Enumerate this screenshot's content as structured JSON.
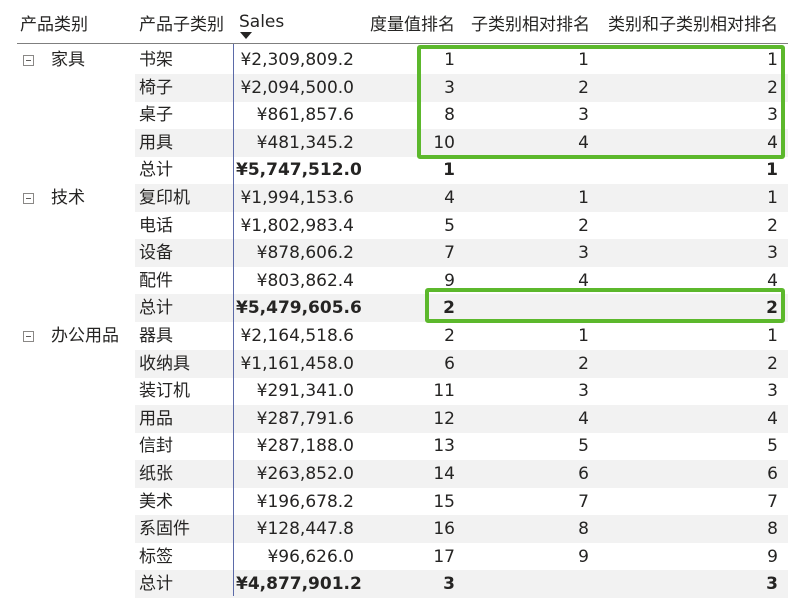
{
  "headers": {
    "category": "产品类别",
    "subcategory": "产品子类别",
    "sales": "Sales",
    "measure_rank": "度量值排名",
    "sub_rank": "子类别相对排名",
    "cat_sub_rank": "类别和子类别相对排名"
  },
  "groups": [
    {
      "name": "家具",
      "rows": [
        {
          "sub": "书架",
          "sales": "¥2,309,809.2",
          "m": "1",
          "s": "1",
          "c": "1"
        },
        {
          "sub": "椅子",
          "sales": "¥2,094,500.0",
          "m": "3",
          "s": "2",
          "c": "2"
        },
        {
          "sub": "桌子",
          "sales": "¥861,857.6",
          "m": "8",
          "s": "3",
          "c": "3"
        },
        {
          "sub": "用具",
          "sales": "¥481,345.2",
          "m": "10",
          "s": "4",
          "c": "4"
        }
      ],
      "total": {
        "label": "总计",
        "sales": "¥5,747,512.0",
        "m": "1",
        "s": "",
        "c": "1"
      }
    },
    {
      "name": "技术",
      "rows": [
        {
          "sub": "复印机",
          "sales": "¥1,994,153.6",
          "m": "4",
          "s": "1",
          "c": "1"
        },
        {
          "sub": "电话",
          "sales": "¥1,802,983.4",
          "m": "5",
          "s": "2",
          "c": "2"
        },
        {
          "sub": "设备",
          "sales": "¥878,606.2",
          "m": "7",
          "s": "3",
          "c": "3"
        },
        {
          "sub": "配件",
          "sales": "¥803,862.4",
          "m": "9",
          "s": "4",
          "c": "4"
        }
      ],
      "total": {
        "label": "总计",
        "sales": "¥5,479,605.6",
        "m": "2",
        "s": "",
        "c": "2"
      }
    },
    {
      "name": "办公用品",
      "rows": [
        {
          "sub": "器具",
          "sales": "¥2,164,518.6",
          "m": "2",
          "s": "1",
          "c": "1"
        },
        {
          "sub": "收纳具",
          "sales": "¥1,161,458.0",
          "m": "6",
          "s": "2",
          "c": "2"
        },
        {
          "sub": "装订机",
          "sales": "¥291,341.0",
          "m": "11",
          "s": "3",
          "c": "3"
        },
        {
          "sub": "用品",
          "sales": "¥287,791.6",
          "m": "12",
          "s": "4",
          "c": "4"
        },
        {
          "sub": "信封",
          "sales": "¥287,188.0",
          "m": "13",
          "s": "5",
          "c": "5"
        },
        {
          "sub": "纸张",
          "sales": "¥263,852.0",
          "m": "14",
          "s": "6",
          "c": "6"
        },
        {
          "sub": "美术",
          "sales": "¥196,678.2",
          "m": "15",
          "s": "7",
          "c": "7"
        },
        {
          "sub": "系固件",
          "sales": "¥128,447.8",
          "m": "16",
          "s": "8",
          "c": "8"
        },
        {
          "sub": "标签",
          "sales": "¥96,626.0",
          "m": "17",
          "s": "9",
          "c": "9"
        }
      ],
      "total": {
        "label": "总计",
        "sales": "¥4,877,901.2",
        "m": "3",
        "s": "",
        "c": "3"
      }
    }
  ],
  "colors": {
    "highlight": "#5cb82c",
    "band": "#f2f2f2",
    "divider": "#5b6aa8"
  }
}
